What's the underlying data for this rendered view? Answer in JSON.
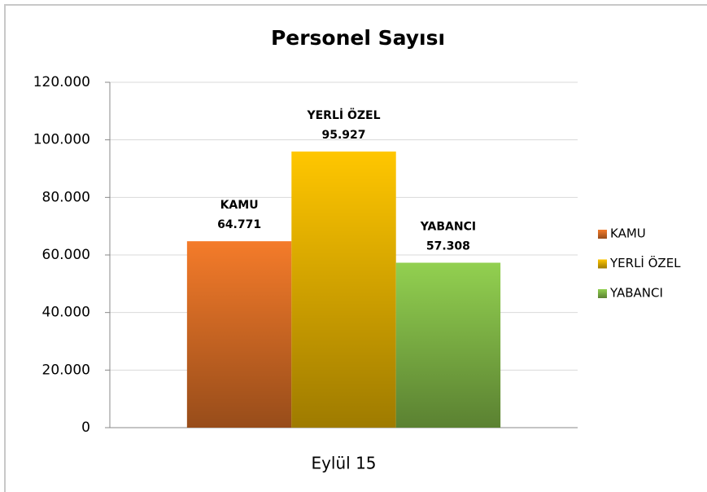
{
  "chart_data": {
    "type": "bar",
    "title": "Personel Sayısı",
    "categories": [
      "Eylül 15"
    ],
    "series": [
      {
        "name": "KAMU",
        "color": "#f47b2a",
        "values": [
          64771
        ],
        "value_labels": [
          "64.771"
        ]
      },
      {
        "name": "YERLİ ÖZEL",
        "color": "#ffc600",
        "values": [
          95927
        ],
        "value_labels": [
          "95.927"
        ]
      },
      {
        "name": "YABANCI",
        "color": "#92d050",
        "values": [
          57308
        ],
        "value_labels": [
          "57.308"
        ]
      }
    ],
    "ylim": [
      0,
      120000
    ],
    "yticks": [
      0,
      {
        "value": 20000,
        "label": "20.000"
      },
      {
        "value": 40000,
        "label": "40.000"
      },
      {
        "value": 60000,
        "label": "60.000"
      },
      {
        "value": 80000,
        "label": "80.000"
      },
      {
        "value": 100000,
        "label": "100.000"
      },
      {
        "value": 120000,
        "label": "120.000"
      }
    ],
    "grid": true,
    "legend": "right"
  }
}
